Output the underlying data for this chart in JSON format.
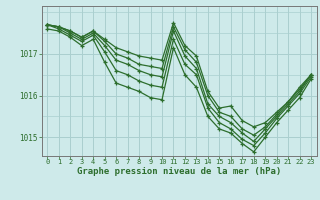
{
  "title": "Graphe pression niveau de la mer (hPa)",
  "background_color": "#ceeaea",
  "grid_color": "#aacfcf",
  "line_color": "#2d6e2d",
  "xlim": [
    -0.5,
    23.5
  ],
  "ylim": [
    1014.55,
    1018.15
  ],
  "yticks": [
    1015,
    1016,
    1017
  ],
  "xticks": [
    0,
    1,
    2,
    3,
    4,
    5,
    6,
    7,
    8,
    9,
    10,
    11,
    12,
    13,
    14,
    15,
    16,
    17,
    18,
    19,
    20,
    21,
    22,
    23
  ],
  "series": [
    [
      1017.7,
      1017.65,
      1017.55,
      1017.4,
      1017.55,
      1017.35,
      1017.15,
      1017.05,
      1016.95,
      1016.9,
      1016.85,
      1017.75,
      1017.2,
      1016.95,
      1016.1,
      1015.7,
      1015.75,
      1015.4,
      1015.25,
      1015.35,
      1015.6,
      1015.85,
      1016.2,
      1016.5
    ],
    [
      1017.7,
      1017.65,
      1017.55,
      1017.4,
      1017.55,
      1017.3,
      1017.0,
      1016.9,
      1016.75,
      1016.7,
      1016.65,
      1017.65,
      1017.1,
      1016.8,
      1016.0,
      1015.6,
      1015.5,
      1015.2,
      1015.05,
      1015.25,
      1015.55,
      1015.85,
      1016.15,
      1016.5
    ],
    [
      1017.7,
      1017.65,
      1017.5,
      1017.35,
      1017.5,
      1017.2,
      1016.85,
      1016.75,
      1016.6,
      1016.5,
      1016.45,
      1017.55,
      1016.95,
      1016.65,
      1015.8,
      1015.5,
      1015.35,
      1015.1,
      1014.9,
      1015.2,
      1015.5,
      1015.8,
      1016.1,
      1016.5
    ],
    [
      1017.7,
      1017.6,
      1017.45,
      1017.3,
      1017.45,
      1017.05,
      1016.6,
      1016.5,
      1016.35,
      1016.25,
      1016.2,
      1017.35,
      1016.75,
      1016.5,
      1015.7,
      1015.35,
      1015.2,
      1014.95,
      1014.8,
      1015.1,
      1015.45,
      1015.75,
      1016.05,
      1016.45
    ],
    [
      1017.6,
      1017.55,
      1017.4,
      1017.2,
      1017.35,
      1016.8,
      1016.3,
      1016.2,
      1016.1,
      1015.95,
      1015.9,
      1017.15,
      1016.5,
      1016.2,
      1015.5,
      1015.2,
      1015.1,
      1014.85,
      1014.65,
      1015.0,
      1015.35,
      1015.65,
      1015.95,
      1016.4
    ]
  ]
}
